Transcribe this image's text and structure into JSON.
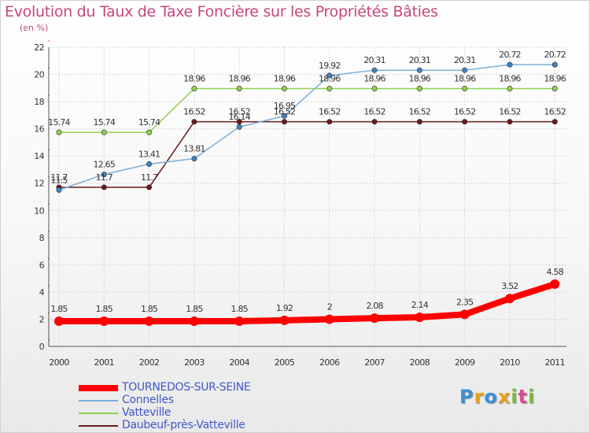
{
  "title": "Evolution du Taux de Taxe Foncière sur les Propriétés Bâties",
  "unit_label": "(en %)",
  "logo": {
    "letters": [
      "P",
      "r",
      "o",
      "x",
      "i",
      "t",
      "i"
    ],
    "colors": [
      "#3b8fd6",
      "#e6a21a",
      "#3b8fd6",
      "#e6a21a",
      "#7ab83a",
      "#d94c8a",
      "#7ab83a"
    ]
  },
  "chart_data": {
    "type": "line",
    "title": "Evolution du Taux de Taxe Foncière sur les Propriétés Bâties",
    "ylabel": "(en %)",
    "xlabel": "",
    "ylim": [
      0,
      22
    ],
    "yticks": [
      "0",
      "2",
      "4",
      "6",
      "8",
      "10",
      "12",
      "14",
      "16",
      "18",
      "20",
      "22"
    ],
    "grid": true,
    "legend_position": "bottom-left",
    "categories": [
      "2000",
      "2001",
      "2002",
      "2003",
      "2004",
      "2005",
      "2006",
      "2007",
      "2008",
      "2009",
      "2010",
      "2011"
    ],
    "series": [
      {
        "name": "Daubeuf-près-Vatteville",
        "color": "#6b1a1a",
        "values": [
          11.7,
          11.7,
          11.7,
          16.52,
          16.52,
          16.52,
          16.52,
          16.52,
          16.52,
          16.52,
          16.52,
          16.52
        ],
        "labels": [
          "11.7",
          "11.7",
          "11.7",
          "16.52",
          "16.52",
          "16.52",
          "16.52",
          "16.52",
          "16.52",
          "16.52",
          "16.52",
          "16.52"
        ]
      },
      {
        "name": "Vatteville",
        "color": "#8fd14f",
        "values": [
          15.74,
          15.74,
          15.74,
          18.96,
          18.96,
          18.96,
          18.96,
          18.96,
          18.96,
          18.96,
          18.96,
          18.96
        ],
        "labels": [
          "15.74",
          "15.74",
          "15.74",
          "18.96",
          "18.96",
          "18.96",
          "18.96",
          "18.96",
          "18.96",
          "18.96",
          "18.96",
          "18.96"
        ]
      },
      {
        "name": "Connelles",
        "color": "#7aaed8",
        "values": [
          11.5,
          12.65,
          13.41,
          13.81,
          16.14,
          16.95,
          19.92,
          20.31,
          20.31,
          20.31,
          20.72,
          20.72
        ],
        "labels": [
          "11.5",
          "12.65",
          "13.41",
          "13.81",
          "16.14",
          "16.95",
          "19.92",
          "20.31",
          "20.31",
          "20.31",
          "20.72",
          "20.72"
        ]
      },
      {
        "name": "TOURNEDOS-SUR-SEINE",
        "color": "#ff0000",
        "values": [
          1.85,
          1.85,
          1.85,
          1.85,
          1.85,
          1.92,
          2,
          2.08,
          2.14,
          2.35,
          3.52,
          4.58
        ],
        "labels": [
          "1.85",
          "1.85",
          "1.85",
          "1.85",
          "1.85",
          "1.92",
          "2",
          "2.08",
          "2.14",
          "2.35",
          "3.52",
          "4.58"
        ]
      }
    ]
  },
  "legend": {
    "items": [
      {
        "label": "TOURNEDOS-SUR-SEINE",
        "color": "#ff0000",
        "style": "thick"
      },
      {
        "label": "Connelles",
        "color": "#7aaed8",
        "style": "thin"
      },
      {
        "label": "Vatteville",
        "color": "#8fd14f",
        "style": "thin"
      },
      {
        "label": "Daubeuf-près-Vatteville",
        "color": "#6b1a1a",
        "style": "thin"
      }
    ]
  }
}
